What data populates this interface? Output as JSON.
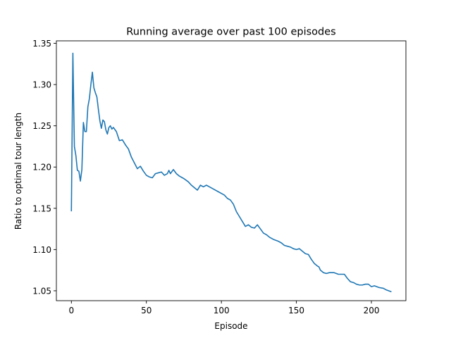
{
  "chart_data": {
    "type": "line",
    "title": "Running average over past 100 episodes",
    "xlabel": "Episode",
    "ylabel": "Ratio to optimal tour length",
    "xlim": [
      -10,
      223
    ],
    "ylim": [
      1.038,
      1.353
    ],
    "xticks": [
      0,
      50,
      100,
      150,
      200
    ],
    "xtick_labels": [
      "0",
      "50",
      "100",
      "150",
      "200"
    ],
    "yticks": [
      1.05,
      1.1,
      1.15,
      1.2,
      1.25,
      1.3,
      1.35
    ],
    "ytick_labels": [
      "1.05",
      "1.10",
      "1.15",
      "1.20",
      "1.25",
      "1.30",
      "1.35"
    ],
    "grid": false,
    "legend": "none",
    "series": [
      {
        "color": "#1f77b4",
        "x": [
          0,
          1,
          2,
          3,
          4,
          5,
          6,
          7,
          8,
          9,
          10,
          11,
          12,
          13,
          14,
          15,
          16,
          17,
          18,
          19,
          20,
          21,
          22,
          23,
          24,
          25,
          26,
          27,
          28,
          30,
          32,
          34,
          36,
          38,
          40,
          42,
          44,
          46,
          48,
          50,
          52,
          54,
          56,
          58,
          60,
          62,
          64,
          65,
          66,
          68,
          70,
          72,
          75,
          78,
          80,
          82,
          84,
          86,
          88,
          90,
          92,
          95,
          98,
          100,
          102,
          104,
          106,
          108,
          110,
          112,
          114,
          116,
          118,
          120,
          122,
          124,
          126,
          128,
          130,
          132,
          135,
          138,
          140,
          142,
          144,
          146,
          148,
          150,
          152,
          154,
          156,
          158,
          160,
          162,
          164,
          165,
          166,
          168,
          170,
          172,
          175,
          178,
          180,
          182,
          184,
          186,
          188,
          190,
          192,
          194,
          196,
          198,
          200,
          202,
          205,
          208,
          210,
          213
        ],
        "y": [
          1.147,
          1.338,
          1.225,
          1.214,
          1.196,
          1.195,
          1.183,
          1.197,
          1.254,
          1.243,
          1.243,
          1.273,
          1.283,
          1.3,
          1.315,
          1.296,
          1.29,
          1.285,
          1.27,
          1.256,
          1.247,
          1.257,
          1.255,
          1.245,
          1.24,
          1.248,
          1.25,
          1.246,
          1.248,
          1.243,
          1.232,
          1.233,
          1.227,
          1.222,
          1.212,
          1.205,
          1.198,
          1.201,
          1.195,
          1.19,
          1.188,
          1.187,
          1.192,
          1.193,
          1.194,
          1.19,
          1.192,
          1.196,
          1.192,
          1.197,
          1.192,
          1.189,
          1.186,
          1.182,
          1.178,
          1.175,
          1.172,
          1.178,
          1.176,
          1.178,
          1.176,
          1.173,
          1.17,
          1.168,
          1.166,
          1.162,
          1.16,
          1.155,
          1.146,
          1.14,
          1.134,
          1.128,
          1.13,
          1.127,
          1.126,
          1.13,
          1.125,
          1.12,
          1.118,
          1.115,
          1.112,
          1.11,
          1.108,
          1.105,
          1.104,
          1.103,
          1.101,
          1.1,
          1.101,
          1.098,
          1.095,
          1.094,
          1.088,
          1.083,
          1.08,
          1.079,
          1.075,
          1.072,
          1.071,
          1.072,
          1.072,
          1.07,
          1.07,
          1.07,
          1.065,
          1.061,
          1.06,
          1.058,
          1.057,
          1.057,
          1.058,
          1.058,
          1.055,
          1.056,
          1.054,
          1.053,
          1.051,
          1.049
        ]
      }
    ]
  }
}
